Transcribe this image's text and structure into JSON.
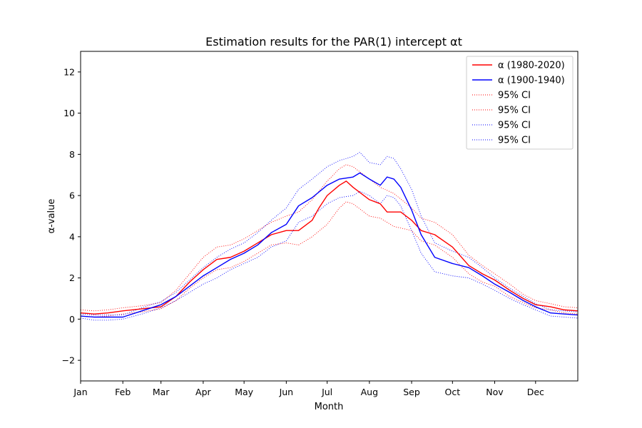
{
  "chart_data": {
    "type": "line",
    "title": "Estimation results for the PAR(1) intercept αt",
    "xlabel": "Month",
    "ylabel": "α-value",
    "xlim": [
      0,
      365
    ],
    "ylim": [
      -3,
      13
    ],
    "yticks": [
      -2,
      0,
      2,
      4,
      6,
      8,
      10,
      12
    ],
    "xtick_labels": [
      "Jan",
      "Feb",
      "Mar",
      "Apr",
      "May",
      "Jun",
      "Jul",
      "Aug",
      "Sep",
      "Oct",
      "Nov",
      "Dec"
    ],
    "xtick_days": [
      0,
      31,
      59,
      90,
      120,
      151,
      181,
      212,
      243,
      273,
      304,
      334
    ],
    "grid": false,
    "legend_position": "top-right",
    "series": [
      {
        "name": "α (1980-2020)",
        "color": "#ff0000",
        "style": "solid",
        "x": [
          0,
          10,
          20,
          31,
          45,
          59,
          70,
          80,
          90,
          100,
          110,
          120,
          130,
          140,
          151,
          160,
          170,
          175,
          181,
          190,
          195,
          200,
          212,
          220,
          225,
          235,
          243,
          250,
          260,
          273,
          285,
          295,
          304,
          315,
          325,
          334,
          345,
          355,
          365
        ],
        "y": [
          0.3,
          0.25,
          0.3,
          0.4,
          0.5,
          0.6,
          1.1,
          1.8,
          2.4,
          2.9,
          3.0,
          3.3,
          3.7,
          4.1,
          4.3,
          4.3,
          4.8,
          5.4,
          6.0,
          6.5,
          6.7,
          6.4,
          5.8,
          5.6,
          5.2,
          5.2,
          4.8,
          4.3,
          4.1,
          3.5,
          2.6,
          2.2,
          1.9,
          1.4,
          1.0,
          0.7,
          0.6,
          0.45,
          0.4
        ]
      },
      {
        "name": "α (1900-1940)",
        "color": "#0000ff",
        "style": "solid",
        "x": [
          0,
          10,
          20,
          31,
          45,
          59,
          70,
          80,
          90,
          100,
          110,
          120,
          130,
          140,
          151,
          160,
          170,
          181,
          190,
          200,
          205,
          212,
          220,
          225,
          230,
          235,
          243,
          250,
          260,
          273,
          285,
          295,
          304,
          315,
          325,
          334,
          345,
          355,
          365
        ],
        "y": [
          0.15,
          0.1,
          0.1,
          0.1,
          0.4,
          0.7,
          1.1,
          1.6,
          2.1,
          2.5,
          2.9,
          3.2,
          3.6,
          4.2,
          4.6,
          5.5,
          5.9,
          6.5,
          6.8,
          6.9,
          7.1,
          6.8,
          6.5,
          6.9,
          6.8,
          6.4,
          5.3,
          4.1,
          3.0,
          2.7,
          2.5,
          2.1,
          1.7,
          1.3,
          0.9,
          0.6,
          0.3,
          0.25,
          0.2
        ]
      },
      {
        "name": "95% CI",
        "color": "#ff0000",
        "style": "dotted",
        "x": [
          0,
          10,
          20,
          31,
          45,
          59,
          70,
          80,
          90,
          100,
          110,
          120,
          130,
          140,
          151,
          160,
          170,
          181,
          190,
          195,
          200,
          212,
          220,
          230,
          243,
          250,
          260,
          273,
          285,
          295,
          304,
          315,
          325,
          334,
          345,
          355,
          365
        ],
        "y": [
          0.45,
          0.4,
          0.45,
          0.55,
          0.65,
          0.8,
          1.4,
          2.2,
          3.0,
          3.5,
          3.6,
          3.9,
          4.3,
          4.7,
          5.0,
          5.2,
          5.8,
          6.7,
          7.3,
          7.5,
          7.4,
          6.8,
          6.4,
          6.1,
          5.4,
          4.9,
          4.7,
          4.1,
          3.1,
          2.6,
          2.2,
          1.7,
          1.2,
          0.9,
          0.75,
          0.6,
          0.55
        ]
      },
      {
        "name": "95% CI",
        "color": "#ff0000",
        "style": "dotted",
        "x": [
          0,
          10,
          20,
          31,
          45,
          59,
          70,
          80,
          90,
          100,
          110,
          120,
          130,
          140,
          151,
          160,
          170,
          181,
          190,
          195,
          200,
          212,
          220,
          230,
          243,
          250,
          260,
          273,
          285,
          295,
          304,
          315,
          325,
          334,
          345,
          355,
          365
        ],
        "y": [
          0.15,
          0.1,
          0.15,
          0.25,
          0.35,
          0.5,
          0.9,
          1.5,
          2.0,
          2.4,
          2.5,
          2.8,
          3.2,
          3.6,
          3.7,
          3.6,
          4.0,
          4.6,
          5.4,
          5.7,
          5.6,
          5.0,
          4.9,
          4.5,
          4.3,
          3.8,
          3.6,
          3.0,
          2.2,
          1.8,
          1.6,
          1.1,
          0.8,
          0.55,
          0.45,
          0.3,
          0.25
        ]
      },
      {
        "name": "95% CI",
        "color": "#0000ff",
        "style": "dotted",
        "x": [
          0,
          10,
          20,
          31,
          45,
          59,
          70,
          80,
          90,
          100,
          110,
          120,
          130,
          140,
          151,
          160,
          170,
          181,
          190,
          200,
          205,
          212,
          220,
          225,
          230,
          235,
          243,
          250,
          260,
          273,
          285,
          295,
          304,
          315,
          325,
          334,
          345,
          355,
          365
        ],
        "y": [
          0.25,
          0.2,
          0.2,
          0.2,
          0.55,
          0.85,
          1.3,
          1.9,
          2.5,
          3.0,
          3.4,
          3.7,
          4.2,
          4.8,
          5.4,
          6.3,
          6.8,
          7.4,
          7.7,
          7.9,
          8.1,
          7.6,
          7.5,
          7.9,
          7.8,
          7.3,
          6.3,
          5.0,
          3.7,
          3.3,
          3.0,
          2.5,
          2.0,
          1.5,
          1.1,
          0.75,
          0.45,
          0.4,
          0.35
        ]
      },
      {
        "name": "95% CI",
        "color": "#0000ff",
        "style": "dotted",
        "x": [
          0,
          10,
          20,
          31,
          45,
          59,
          70,
          80,
          90,
          100,
          110,
          120,
          130,
          140,
          151,
          160,
          170,
          181,
          190,
          200,
          205,
          212,
          220,
          225,
          230,
          235,
          243,
          250,
          260,
          273,
          285,
          295,
          304,
          315,
          325,
          334,
          345,
          355,
          365
        ],
        "y": [
          0.05,
          -0.05,
          -0.05,
          0.0,
          0.25,
          0.55,
          0.9,
          1.3,
          1.7,
          2.0,
          2.4,
          2.7,
          3.0,
          3.5,
          3.8,
          4.7,
          5.0,
          5.6,
          5.9,
          6.0,
          6.2,
          6.0,
          5.6,
          6.0,
          5.9,
          5.5,
          4.3,
          3.2,
          2.3,
          2.1,
          2.0,
          1.7,
          1.4,
          1.0,
          0.7,
          0.45,
          0.15,
          0.1,
          0.05
        ]
      }
    ]
  }
}
